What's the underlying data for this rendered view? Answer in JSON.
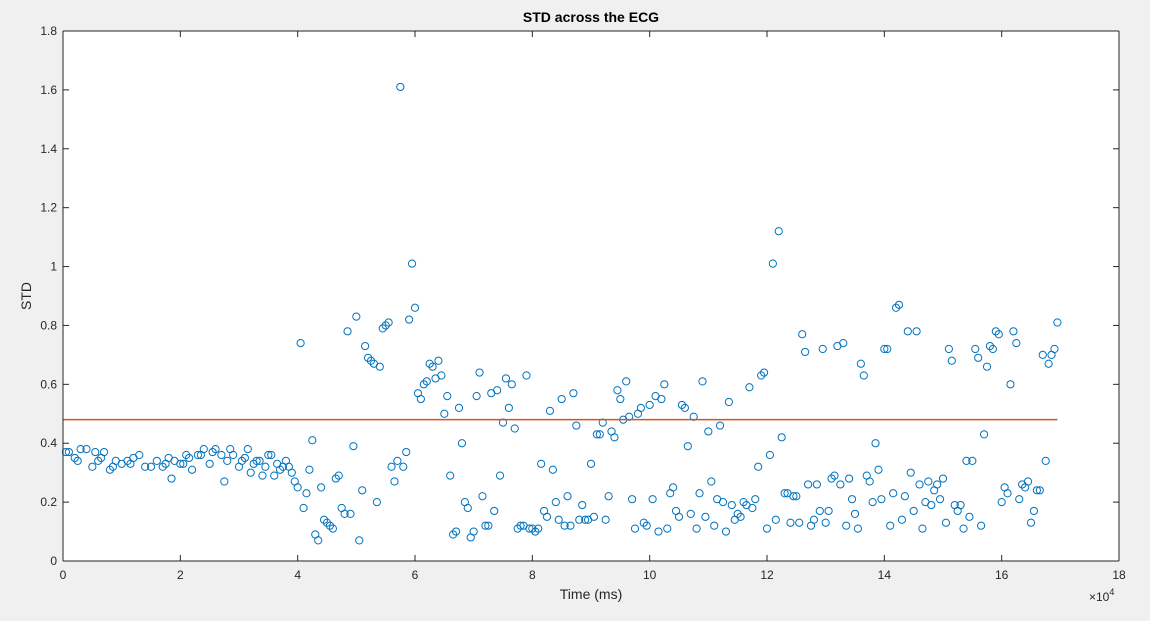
{
  "colors": {
    "figure_background": "#f0f0f0",
    "axes_background": "#ffffff",
    "marker": "#0072bd",
    "threshold_line": "#d95319",
    "axis": "#262626"
  },
  "chart_data": {
    "type": "scatter",
    "title": "STD across the ECG",
    "xlabel": "Time (ms)",
    "ylabel": "STD",
    "x_exponent_label": "×10",
    "x_exponent_power": "4",
    "x_scale": 10000,
    "xlim": [
      0,
      18
    ],
    "ylim": [
      0,
      1.8
    ],
    "x_ticks": [
      0,
      2,
      4,
      6,
      8,
      10,
      12,
      14,
      16,
      18
    ],
    "y_ticks": [
      0,
      0.2,
      0.4,
      0.6,
      0.8,
      1,
      1.2,
      1.4,
      1.6,
      1.8
    ],
    "x_tick_labels": [
      "0",
      "2",
      "4",
      "6",
      "8",
      "10",
      "12",
      "14",
      "16",
      "18"
    ],
    "y_tick_labels": [
      "0",
      "0.2",
      "0.4",
      "0.6",
      "0.8",
      "1",
      "1.2",
      "1.4",
      "1.6",
      "1.8"
    ],
    "grid": false,
    "box": true,
    "marker": "open-circle",
    "threshold": {
      "value": 0.48,
      "x_start": 0,
      "x_end": 16.95
    },
    "points": [
      [
        0.05,
        0.37
      ],
      [
        0.1,
        0.37
      ],
      [
        0.2,
        0.35
      ],
      [
        0.25,
        0.34
      ],
      [
        0.3,
        0.38
      ],
      [
        0.4,
        0.38
      ],
      [
        0.5,
        0.32
      ],
      [
        0.55,
        0.37
      ],
      [
        0.6,
        0.34
      ],
      [
        0.65,
        0.35
      ],
      [
        0.7,
        0.37
      ],
      [
        0.8,
        0.31
      ],
      [
        0.85,
        0.32
      ],
      [
        0.9,
        0.34
      ],
      [
        1.0,
        0.33
      ],
      [
        1.1,
        0.34
      ],
      [
        1.15,
        0.33
      ],
      [
        1.2,
        0.35
      ],
      [
        1.3,
        0.36
      ],
      [
        1.4,
        0.32
      ],
      [
        1.5,
        0.32
      ],
      [
        1.6,
        0.34
      ],
      [
        1.7,
        0.32
      ],
      [
        1.75,
        0.33
      ],
      [
        1.8,
        0.35
      ],
      [
        1.85,
        0.28
      ],
      [
        1.9,
        0.34
      ],
      [
        2.0,
        0.33
      ],
      [
        2.05,
        0.33
      ],
      [
        2.1,
        0.36
      ],
      [
        2.15,
        0.35
      ],
      [
        2.2,
        0.31
      ],
      [
        2.3,
        0.36
      ],
      [
        2.35,
        0.36
      ],
      [
        2.4,
        0.38
      ],
      [
        2.5,
        0.33
      ],
      [
        2.55,
        0.37
      ],
      [
        2.6,
        0.38
      ],
      [
        2.7,
        0.36
      ],
      [
        2.75,
        0.27
      ],
      [
        2.8,
        0.34
      ],
      [
        2.85,
        0.38
      ],
      [
        2.9,
        0.36
      ],
      [
        3.0,
        0.32
      ],
      [
        3.05,
        0.34
      ],
      [
        3.1,
        0.35
      ],
      [
        3.15,
        0.38
      ],
      [
        3.2,
        0.3
      ],
      [
        3.25,
        0.33
      ],
      [
        3.3,
        0.34
      ],
      [
        3.35,
        0.34
      ],
      [
        3.4,
        0.29
      ],
      [
        3.45,
        0.32
      ],
      [
        3.5,
        0.36
      ],
      [
        3.55,
        0.36
      ],
      [
        3.6,
        0.29
      ],
      [
        3.65,
        0.33
      ],
      [
        3.7,
        0.31
      ],
      [
        3.75,
        0.32
      ],
      [
        3.8,
        0.34
      ],
      [
        3.85,
        0.32
      ],
      [
        3.9,
        0.3
      ],
      [
        3.95,
        0.27
      ],
      [
        4.0,
        0.25
      ],
      [
        4.05,
        0.74
      ],
      [
        4.1,
        0.18
      ],
      [
        4.15,
        0.23
      ],
      [
        4.2,
        0.31
      ],
      [
        4.25,
        0.41
      ],
      [
        4.3,
        0.09
      ],
      [
        4.35,
        0.07
      ],
      [
        4.4,
        0.25
      ],
      [
        4.45,
        0.14
      ],
      [
        4.5,
        0.13
      ],
      [
        4.55,
        0.12
      ],
      [
        4.6,
        0.11
      ],
      [
        4.65,
        0.28
      ],
      [
        4.7,
        0.29
      ],
      [
        4.75,
        0.18
      ],
      [
        4.8,
        0.16
      ],
      [
        4.85,
        0.78
      ],
      [
        4.9,
        0.16
      ],
      [
        4.95,
        0.39
      ],
      [
        5.0,
        0.83
      ],
      [
        5.05,
        0.07
      ],
      [
        5.1,
        0.24
      ],
      [
        5.15,
        0.73
      ],
      [
        5.2,
        0.69
      ],
      [
        5.25,
        0.68
      ],
      [
        5.3,
        0.67
      ],
      [
        5.35,
        0.2
      ],
      [
        5.4,
        0.66
      ],
      [
        5.45,
        0.79
      ],
      [
        5.5,
        0.8
      ],
      [
        5.55,
        0.81
      ],
      [
        5.6,
        0.32
      ],
      [
        5.65,
        0.27
      ],
      [
        5.7,
        0.34
      ],
      [
        5.75,
        1.61
      ],
      [
        5.8,
        0.32
      ],
      [
        5.85,
        0.37
      ],
      [
        5.9,
        0.82
      ],
      [
        5.95,
        1.01
      ],
      [
        6.0,
        0.86
      ],
      [
        6.05,
        0.57
      ],
      [
        6.1,
        0.55
      ],
      [
        6.15,
        0.6
      ],
      [
        6.2,
        0.61
      ],
      [
        6.25,
        0.67
      ],
      [
        6.3,
        0.66
      ],
      [
        6.35,
        0.62
      ],
      [
        6.4,
        0.68
      ],
      [
        6.45,
        0.63
      ],
      [
        6.5,
        0.5
      ],
      [
        6.55,
        0.56
      ],
      [
        6.6,
        0.29
      ],
      [
        6.65,
        0.09
      ],
      [
        6.7,
        0.1
      ],
      [
        6.75,
        0.52
      ],
      [
        6.8,
        0.4
      ],
      [
        6.85,
        0.2
      ],
      [
        6.9,
        0.18
      ],
      [
        6.95,
        0.08
      ],
      [
        7.0,
        0.1
      ],
      [
        7.05,
        0.56
      ],
      [
        7.1,
        0.64
      ],
      [
        7.15,
        0.22
      ],
      [
        7.2,
        0.12
      ],
      [
        7.25,
        0.12
      ],
      [
        7.3,
        0.57
      ],
      [
        7.35,
        0.17
      ],
      [
        7.4,
        0.58
      ],
      [
        7.45,
        0.29
      ],
      [
        7.5,
        0.47
      ],
      [
        7.55,
        0.62
      ],
      [
        7.6,
        0.52
      ],
      [
        7.65,
        0.6
      ],
      [
        7.7,
        0.45
      ],
      [
        7.75,
        0.11
      ],
      [
        7.8,
        0.12
      ],
      [
        7.85,
        0.12
      ],
      [
        7.9,
        0.63
      ],
      [
        7.95,
        0.11
      ],
      [
        8.0,
        0.11
      ],
      [
        8.05,
        0.1
      ],
      [
        8.1,
        0.11
      ],
      [
        8.15,
        0.33
      ],
      [
        8.2,
        0.17
      ],
      [
        8.25,
        0.15
      ],
      [
        8.3,
        0.51
      ],
      [
        8.35,
        0.31
      ],
      [
        8.4,
        0.2
      ],
      [
        8.45,
        0.14
      ],
      [
        8.5,
        0.55
      ],
      [
        8.55,
        0.12
      ],
      [
        8.6,
        0.22
      ],
      [
        8.65,
        0.12
      ],
      [
        8.7,
        0.57
      ],
      [
        8.75,
        0.46
      ],
      [
        8.8,
        0.14
      ],
      [
        8.85,
        0.19
      ],
      [
        8.9,
        0.14
      ],
      [
        8.95,
        0.14
      ],
      [
        9.0,
        0.33
      ],
      [
        9.05,
        0.15
      ],
      [
        9.1,
        0.43
      ],
      [
        9.15,
        0.43
      ],
      [
        9.2,
        0.47
      ],
      [
        9.25,
        0.14
      ],
      [
        9.3,
        0.22
      ],
      [
        9.35,
        0.44
      ],
      [
        9.4,
        0.42
      ],
      [
        9.45,
        0.58
      ],
      [
        9.5,
        0.55
      ],
      [
        9.55,
        0.48
      ],
      [
        9.6,
        0.61
      ],
      [
        9.65,
        0.49
      ],
      [
        9.7,
        0.21
      ],
      [
        9.75,
        0.11
      ],
      [
        9.8,
        0.5
      ],
      [
        9.85,
        0.52
      ],
      [
        9.9,
        0.13
      ],
      [
        9.95,
        0.12
      ],
      [
        10.0,
        0.53
      ],
      [
        10.05,
        0.21
      ],
      [
        10.1,
        0.56
      ],
      [
        10.15,
        0.1
      ],
      [
        10.2,
        0.55
      ],
      [
        10.25,
        0.6
      ],
      [
        10.3,
        0.11
      ],
      [
        10.35,
        0.23
      ],
      [
        10.4,
        0.25
      ],
      [
        10.45,
        0.17
      ],
      [
        10.5,
        0.15
      ],
      [
        10.55,
        0.53
      ],
      [
        10.6,
        0.52
      ],
      [
        10.65,
        0.39
      ],
      [
        10.7,
        0.16
      ],
      [
        10.75,
        0.49
      ],
      [
        10.8,
        0.11
      ],
      [
        10.85,
        0.23
      ],
      [
        10.9,
        0.61
      ],
      [
        10.95,
        0.15
      ],
      [
        11.0,
        0.44
      ],
      [
        11.05,
        0.27
      ],
      [
        11.1,
        0.12
      ],
      [
        11.15,
        0.21
      ],
      [
        11.2,
        0.46
      ],
      [
        11.25,
        0.2
      ],
      [
        11.3,
        0.1
      ],
      [
        11.35,
        0.54
      ],
      [
        11.4,
        0.19
      ],
      [
        11.45,
        0.14
      ],
      [
        11.5,
        0.16
      ],
      [
        11.55,
        0.15
      ],
      [
        11.6,
        0.2
      ],
      [
        11.65,
        0.19
      ],
      [
        11.7,
        0.59
      ],
      [
        11.75,
        0.18
      ],
      [
        11.8,
        0.21
      ],
      [
        11.85,
        0.32
      ],
      [
        11.9,
        0.63
      ],
      [
        11.95,
        0.64
      ],
      [
        12.0,
        0.11
      ],
      [
        12.05,
        0.36
      ],
      [
        12.1,
        1.01
      ],
      [
        12.15,
        0.14
      ],
      [
        12.2,
        1.12
      ],
      [
        12.25,
        0.42
      ],
      [
        12.3,
        0.23
      ],
      [
        12.35,
        0.23
      ],
      [
        12.4,
        0.13
      ],
      [
        12.45,
        0.22
      ],
      [
        12.5,
        0.22
      ],
      [
        12.55,
        0.13
      ],
      [
        12.6,
        0.77
      ],
      [
        12.65,
        0.71
      ],
      [
        12.7,
        0.26
      ],
      [
        12.75,
        0.12
      ],
      [
        12.8,
        0.14
      ],
      [
        12.85,
        0.26
      ],
      [
        12.9,
        0.17
      ],
      [
        12.95,
        0.72
      ],
      [
        13.0,
        0.13
      ],
      [
        13.05,
        0.17
      ],
      [
        13.1,
        0.28
      ],
      [
        13.15,
        0.29
      ],
      [
        13.2,
        0.73
      ],
      [
        13.25,
        0.26
      ],
      [
        13.3,
        0.74
      ],
      [
        13.35,
        0.12
      ],
      [
        13.4,
        0.28
      ],
      [
        13.45,
        0.21
      ],
      [
        13.5,
        0.16
      ],
      [
        13.55,
        0.11
      ],
      [
        13.6,
        0.67
      ],
      [
        13.65,
        0.63
      ],
      [
        13.7,
        0.29
      ],
      [
        13.75,
        0.27
      ],
      [
        13.8,
        0.2
      ],
      [
        13.85,
        0.4
      ],
      [
        13.9,
        0.31
      ],
      [
        13.95,
        0.21
      ],
      [
        14.0,
        0.72
      ],
      [
        14.05,
        0.72
      ],
      [
        14.1,
        0.12
      ],
      [
        14.15,
        0.23
      ],
      [
        14.2,
        0.86
      ],
      [
        14.25,
        0.87
      ],
      [
        14.3,
        0.14
      ],
      [
        14.35,
        0.22
      ],
      [
        14.4,
        0.78
      ],
      [
        14.45,
        0.3
      ],
      [
        14.5,
        0.17
      ],
      [
        14.55,
        0.78
      ],
      [
        14.6,
        0.26
      ],
      [
        14.65,
        0.11
      ],
      [
        14.7,
        0.2
      ],
      [
        14.75,
        0.27
      ],
      [
        14.8,
        0.19
      ],
      [
        14.85,
        0.24
      ],
      [
        14.9,
        0.26
      ],
      [
        14.95,
        0.21
      ],
      [
        15.0,
        0.28
      ],
      [
        15.05,
        0.13
      ],
      [
        15.1,
        0.72
      ],
      [
        15.15,
        0.68
      ],
      [
        15.2,
        0.19
      ],
      [
        15.25,
        0.17
      ],
      [
        15.3,
        0.19
      ],
      [
        15.35,
        0.11
      ],
      [
        15.4,
        0.34
      ],
      [
        15.45,
        0.15
      ],
      [
        15.5,
        0.34
      ],
      [
        15.55,
        0.72
      ],
      [
        15.6,
        0.69
      ],
      [
        15.65,
        0.12
      ],
      [
        15.7,
        0.43
      ],
      [
        15.75,
        0.66
      ],
      [
        15.8,
        0.73
      ],
      [
        15.85,
        0.72
      ],
      [
        15.9,
        0.78
      ],
      [
        15.95,
        0.77
      ],
      [
        16.0,
        0.2
      ],
      [
        16.05,
        0.25
      ],
      [
        16.1,
        0.23
      ],
      [
        16.15,
        0.6
      ],
      [
        16.2,
        0.78
      ],
      [
        16.25,
        0.74
      ],
      [
        16.3,
        0.21
      ],
      [
        16.35,
        0.26
      ],
      [
        16.4,
        0.25
      ],
      [
        16.45,
        0.27
      ],
      [
        16.5,
        0.13
      ],
      [
        16.55,
        0.17
      ],
      [
        16.6,
        0.24
      ],
      [
        16.65,
        0.24
      ],
      [
        16.7,
        0.7
      ],
      [
        16.75,
        0.34
      ],
      [
        16.8,
        0.67
      ],
      [
        16.85,
        0.7
      ],
      [
        16.9,
        0.72
      ],
      [
        16.95,
        0.81
      ]
    ]
  }
}
